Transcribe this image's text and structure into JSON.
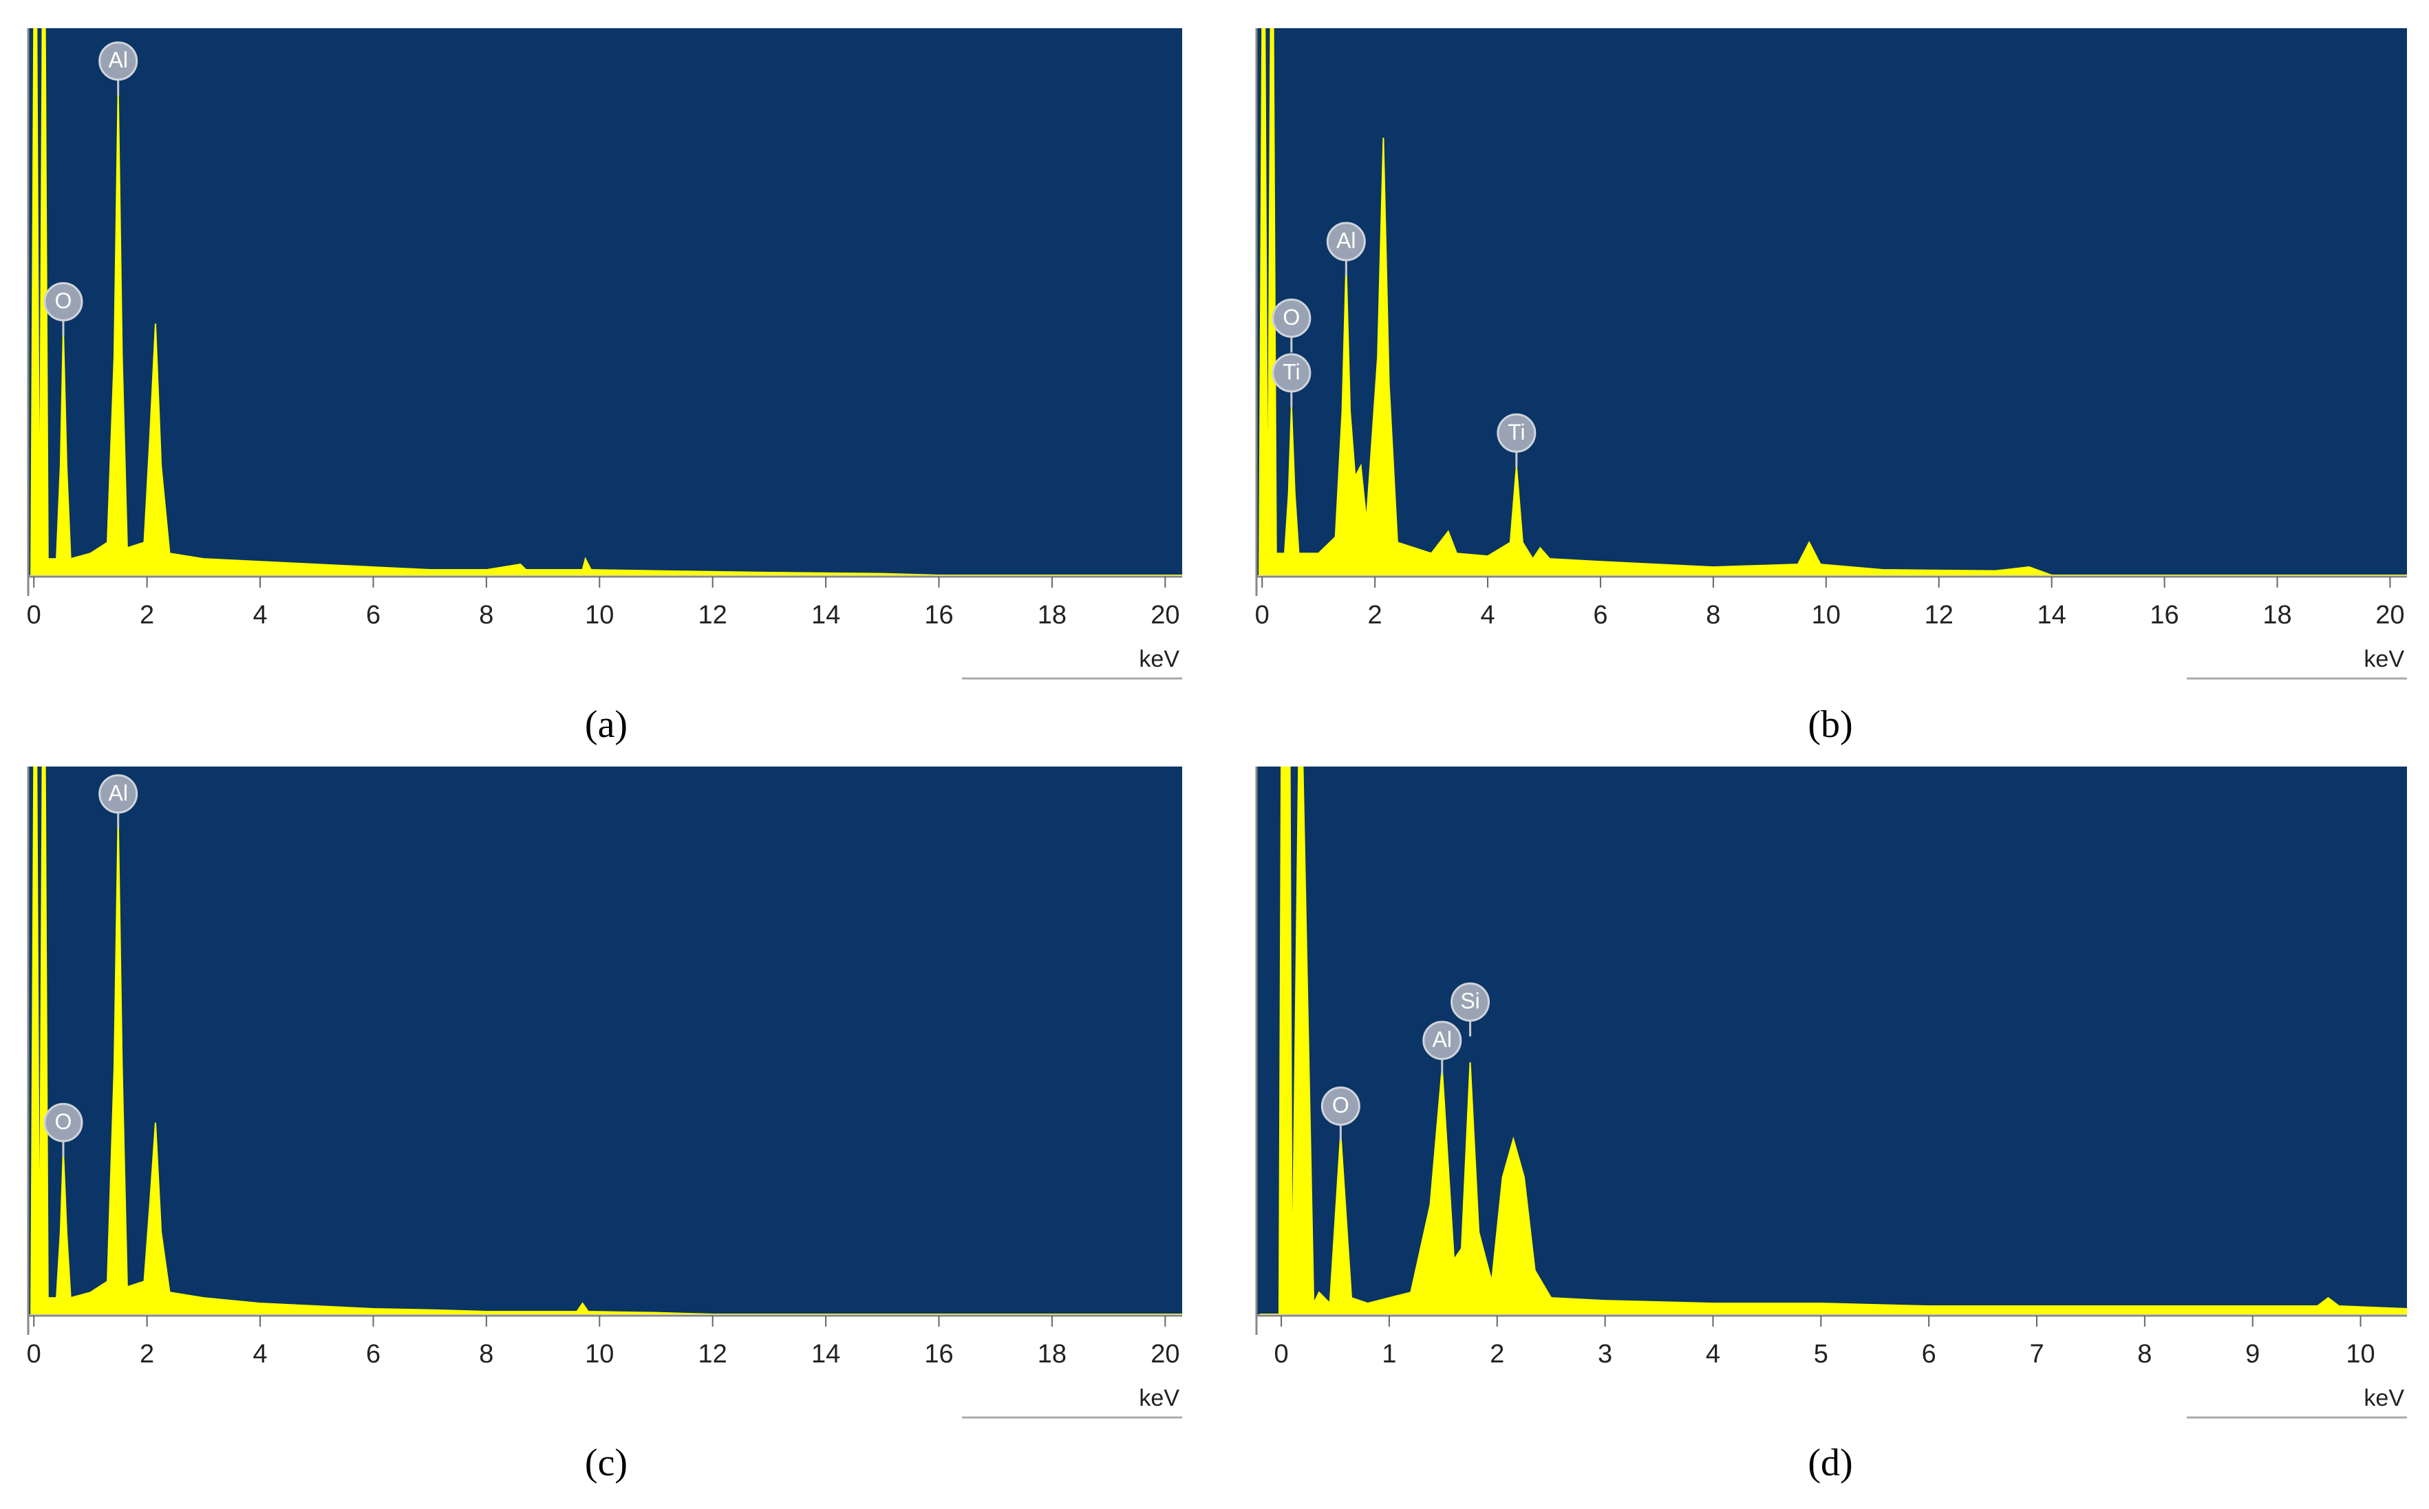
{
  "chart_data": [
    {
      "type": "area",
      "panel_label": "(a)",
      "xlabel": "keV",
      "color": "#ffff00",
      "xlim": [
        -0.1,
        20.3
      ],
      "xticks": [
        0,
        2,
        4,
        6,
        8,
        10,
        12,
        14,
        16,
        18,
        20
      ],
      "ylim": [
        0,
        100
      ],
      "x": [
        -0.05,
        0,
        0.05,
        0.1,
        0.15,
        0.2,
        0.25,
        0.4,
        0.47,
        0.52,
        0.58,
        0.65,
        1.0,
        1.3,
        1.42,
        1.49,
        1.56,
        1.65,
        1.95,
        2.05,
        2.15,
        2.25,
        2.4,
        3,
        4,
        5,
        6,
        7,
        8,
        8.6,
        8.7,
        9,
        9.7,
        9.75,
        9.85,
        11,
        13,
        15,
        16,
        20.3
      ],
      "values": [
        0,
        100,
        100,
        2,
        100,
        100,
        3,
        3,
        20,
        45,
        20,
        3,
        4,
        6,
        40,
        89,
        40,
        5,
        6,
        25,
        46,
        20,
        4,
        3,
        2.5,
        2,
        1.5,
        1,
        1,
        2,
        1,
        1,
        1,
        3,
        1,
        0.8,
        0.5,
        0.3,
        0,
        0
      ],
      "peak_labels": [
        {
          "text": "O",
          "x": 0.52,
          "y": 50
        },
        {
          "text": "Al",
          "x": 1.49,
          "y": 94
        }
      ]
    },
    {
      "type": "area",
      "panel_label": "(b)",
      "xlabel": "keV",
      "color": "#ffff00",
      "xlim": [
        -0.1,
        20.3
      ],
      "xticks": [
        0,
        2,
        4,
        6,
        8,
        10,
        12,
        14,
        16,
        18,
        20
      ],
      "ylim": [
        0,
        100
      ],
      "x": [
        -0.05,
        0,
        0.05,
        0.1,
        0.15,
        0.2,
        0.25,
        0.4,
        0.47,
        0.52,
        0.58,
        0.65,
        1.0,
        1.3,
        1.42,
        1.49,
        1.56,
        1.65,
        1.75,
        1.85,
        2.05,
        2.15,
        2.25,
        2.4,
        3.0,
        3.3,
        3.45,
        4.0,
        4.4,
        4.51,
        4.62,
        4.8,
        4.93,
        5.1,
        6,
        7,
        8,
        9.5,
        9.7,
        9.9,
        11,
        13,
        13.6,
        14,
        20.3
      ],
      "values": [
        0,
        100,
        100,
        2,
        100,
        100,
        4,
        4,
        15,
        31,
        15,
        4,
        4,
        7,
        30,
        57,
        30,
        18,
        20,
        10,
        40,
        80,
        35,
        6,
        4,
        8,
        4,
        3.5,
        6,
        20,
        6,
        3,
        5,
        3,
        2.5,
        2,
        1.5,
        2,
        6,
        2,
        1,
        0.8,
        1.5,
        0,
        0
      ],
      "peak_labels": [
        {
          "text": "O",
          "x": 0.52,
          "y": 47
        },
        {
          "text": "Ti",
          "x": 0.52,
          "y": 37
        },
        {
          "text": "Al",
          "x": 1.49,
          "y": 61
        },
        {
          "text": "Ti",
          "x": 4.51,
          "y": 26
        }
      ]
    },
    {
      "type": "area",
      "panel_label": "(c)",
      "xlabel": "keV",
      "color": "#ffff00",
      "xlim": [
        -0.1,
        20.3
      ],
      "xticks": [
        0,
        2,
        4,
        6,
        8,
        10,
        12,
        14,
        16,
        18,
        20
      ],
      "ylim": [
        0,
        100
      ],
      "x": [
        -0.05,
        0,
        0.05,
        0.1,
        0.15,
        0.2,
        0.25,
        0.4,
        0.47,
        0.52,
        0.58,
        0.65,
        1.0,
        1.3,
        1.42,
        1.49,
        1.56,
        1.65,
        1.95,
        2.05,
        2.15,
        2.25,
        2.4,
        3,
        4,
        5,
        6,
        7,
        8,
        9.6,
        9.7,
        9.8,
        11,
        12,
        20.3
      ],
      "values": [
        0,
        100,
        100,
        2,
        100,
        100,
        3,
        3,
        15,
        30,
        15,
        3,
        4,
        6,
        45,
        91,
        45,
        5,
        6,
        20,
        35,
        15,
        4,
        3,
        2,
        1.5,
        1,
        0.8,
        0.5,
        0.5,
        2,
        0.5,
        0.3,
        0,
        0
      ],
      "peak_labels": [
        {
          "text": "O",
          "x": 0.52,
          "y": 35
        },
        {
          "text": "Al",
          "x": 1.49,
          "y": 95
        }
      ]
    },
    {
      "type": "area",
      "panel_label": "(d)",
      "xlabel": "keV",
      "color": "#ffff00",
      "xlim": [
        -0.23,
        10.43
      ],
      "xticks": [
        0,
        1,
        2,
        3,
        4,
        5,
        6,
        7,
        8,
        9,
        10
      ],
      "ylim": [
        0,
        100
      ],
      "x": [
        -0.2,
        -0.02,
        0.0,
        0.08,
        0.1,
        0.16,
        0.2,
        0.3,
        0.35,
        0.45,
        0.55,
        0.65,
        0.8,
        1.2,
        1.38,
        1.49,
        1.6,
        1.67,
        1.75,
        1.83,
        1.95,
        2.05,
        2.15,
        2.25,
        2.35,
        2.5,
        3,
        4,
        5,
        6,
        7,
        8,
        9,
        9.6,
        9.7,
        9.8,
        10.43
      ],
      "values": [
        0,
        0,
        100,
        100,
        3,
        100,
        100,
        2,
        4,
        2,
        33,
        3,
        2,
        4,
        20,
        45,
        10,
        12,
        46,
        15,
        6,
        25,
        32,
        25,
        8,
        3,
        2.5,
        2,
        2,
        1.5,
        1.5,
        1.5,
        1.5,
        1.5,
        3,
        1.5,
        1
      ],
      "peak_labels": [
        {
          "text": "O",
          "x": 0.55,
          "y": 38
        },
        {
          "text": "Al",
          "x": 1.49,
          "y": 50
        },
        {
          "text": "Si",
          "x": 1.75,
          "y": 57
        }
      ]
    }
  ]
}
